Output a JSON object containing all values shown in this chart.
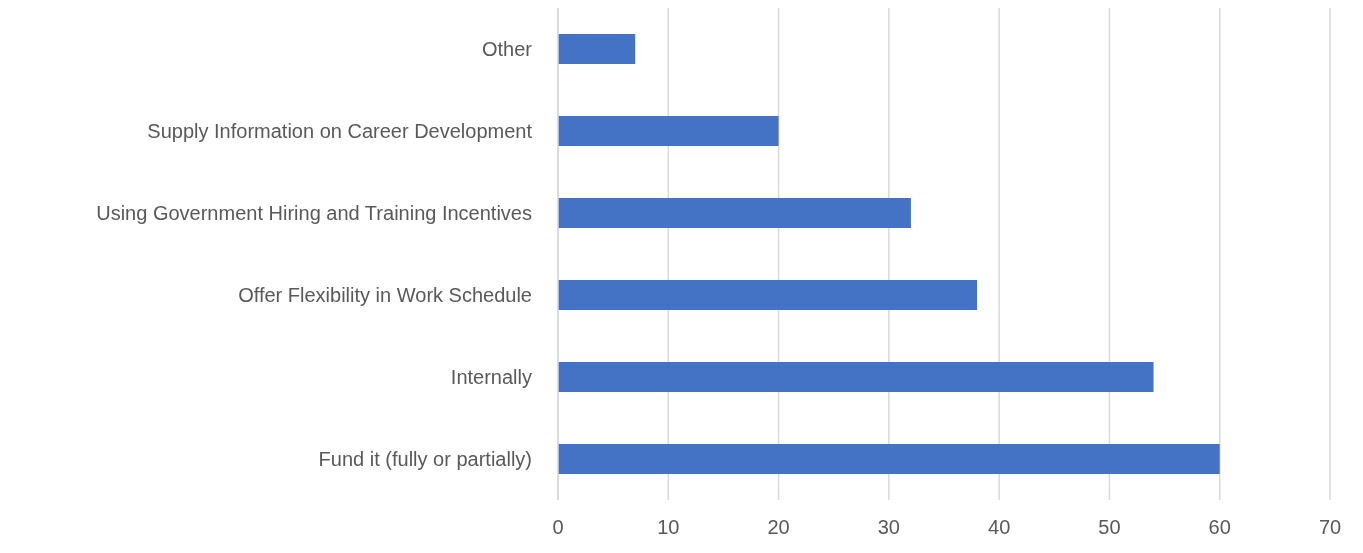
{
  "chart_data": {
    "type": "bar",
    "orientation": "horizontal",
    "categories": [
      "Other",
      "Supply Information on Career Development",
      "Using Government Hiring and Training Incentives",
      "Offer Flexibility in Work Schedule",
      "Internally",
      "Fund it (fully or partially)"
    ],
    "values": [
      7,
      20,
      32,
      38,
      54,
      60
    ],
    "color": "#4472c4",
    "xlim": [
      0,
      70
    ],
    "xticks": [
      0,
      10,
      20,
      30,
      40,
      50,
      60,
      70
    ],
    "grid": "x",
    "legend": false
  }
}
